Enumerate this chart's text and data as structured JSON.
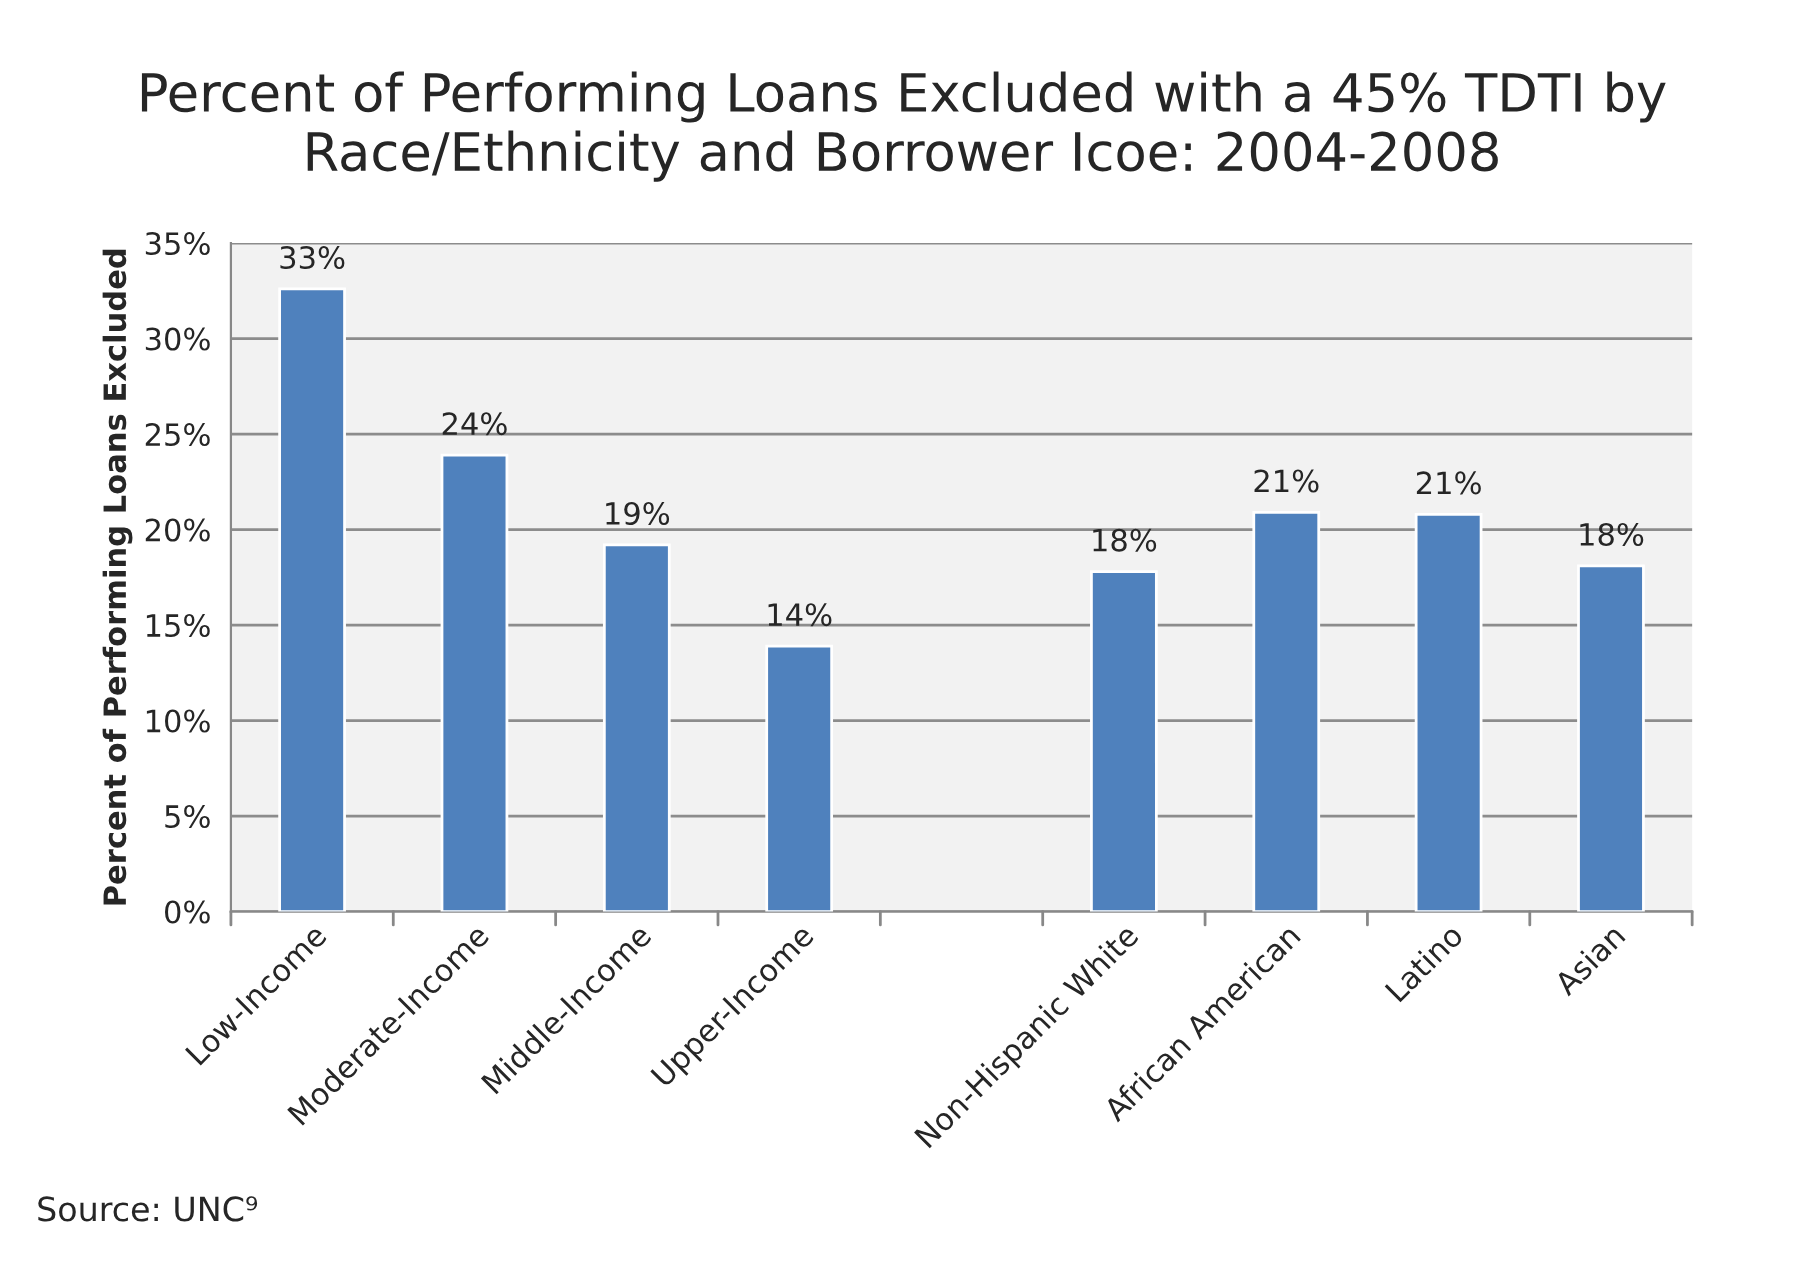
{
  "chart_data": {
    "type": "bar",
    "title": "Percent of Performing Loans Excluded with a 45% TDTI by Race/Ethnicity and Borrower Icoe: 2004-2008",
    "ylabel": "Percent of Performing Loans Excluded",
    "categories": [
      "Low-Income",
      "Moderate-Income",
      "Middle-Income",
      "Upper-Income",
      null,
      "Non-Hispanic White",
      "African American",
      "Latino",
      "Asian"
    ],
    "values": [
      32.6,
      23.9,
      19.2,
      13.9,
      null,
      17.8,
      20.9,
      20.8,
      18.1
    ],
    "value_labels": [
      "33%",
      "24%",
      "19%",
      "14%",
      null,
      "18%",
      "21%",
      "21%",
      "18%"
    ],
    "color": "#4f81bd",
    "ylim": [
      0,
      35
    ],
    "yticks": [
      {
        "value": 0,
        "label": "0%"
      },
      {
        "value": 5,
        "label": "5%"
      },
      {
        "value": 10,
        "label": "10%"
      },
      {
        "value": 15,
        "label": "15%"
      },
      {
        "value": 20,
        "label": "20%"
      },
      {
        "value": 25,
        "label": "25%"
      },
      {
        "value": 30,
        "label": "30%"
      },
      {
        "value": 35,
        "label": "35%"
      }
    ],
    "grid": "y",
    "annotations": [
      "Source: UNC⁹"
    ]
  }
}
